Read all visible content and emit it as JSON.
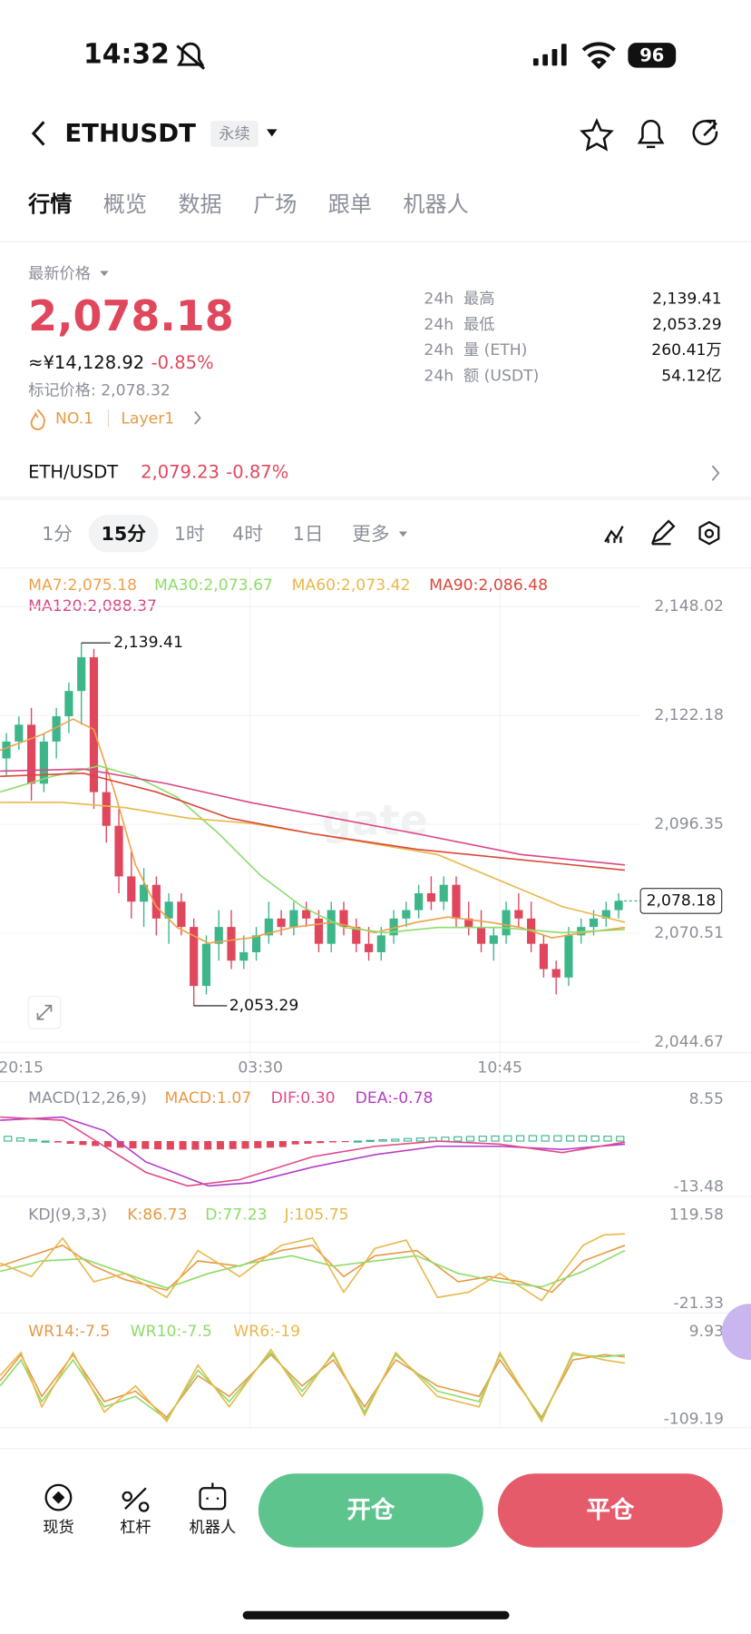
{
  "status_bar": {
    "time": "14:32",
    "battery": "96"
  },
  "header": {
    "symbol": "ETHUSDT",
    "badge": "永续"
  },
  "tabs": [
    "行情",
    "概览",
    "数据",
    "广场",
    "跟单",
    "机器人"
  ],
  "price": {
    "label": "最新价格",
    "last": "2,078.18",
    "cny": "≈¥14,128.92",
    "change": "-0.85%",
    "mark": "标记价格: 2,078.32",
    "tags": [
      "NO.1",
      "Layer1"
    ]
  },
  "stats": [
    {
      "period": "24h",
      "label": "最高",
      "value": "2,139.41"
    },
    {
      "period": "24h",
      "label": "最低",
      "value": "2,053.29"
    },
    {
      "period": "24h",
      "label": "量 (ETH)",
      "value": "260.41万"
    },
    {
      "period": "24h",
      "label": "额 (USDT)",
      "value": "54.12亿"
    }
  ],
  "pair": {
    "name": "ETH/USDT",
    "price": "2,079.23",
    "change": "-0.87%"
  },
  "timeframes": [
    "1分",
    "15分",
    "1时",
    "4时",
    "1日",
    "更多"
  ],
  "kline": {
    "type": "candlestick",
    "ma_labels": [
      "MA7:2,075.18",
      "MA30:2,073.67",
      "MA60:2,073.42",
      "MA90:2,086.48",
      "MA120:2,088.37"
    ],
    "ylim": [
      2042.2,
      2157.2
    ],
    "yticks": [
      {
        "value": 2148.02,
        "label": "2,148.02"
      },
      {
        "value": 2122.18,
        "label": "2,122.18"
      },
      {
        "value": 2096.35,
        "label": "2,096.35"
      },
      {
        "value": 2070.51,
        "label": "2,070.51"
      },
      {
        "value": 2044.67,
        "label": "2,044.67"
      }
    ],
    "times": [
      "20:15",
      "03:30",
      "10:45"
    ],
    "high": {
      "value": 2139.41,
      "label": "2,139.41"
    },
    "low": {
      "value": 2053.29,
      "label": "2,053.29"
    },
    "current": {
      "value": 2078.18,
      "label": "2,078.18"
    },
    "candles": [
      [
        2112,
        2118,
        2108,
        2116
      ],
      [
        2116,
        2122,
        2114,
        2120
      ],
      [
        2120,
        2124,
        2102,
        2106
      ],
      [
        2106,
        2118,
        2104,
        2116
      ],
      [
        2116,
        2124,
        2112,
        2122
      ],
      [
        2122,
        2130,
        2118,
        2128
      ],
      [
        2128,
        2139.41,
        2120,
        2136
      ],
      [
        2136,
        2138,
        2100,
        2104
      ],
      [
        2104,
        2110,
        2092,
        2096
      ],
      [
        2096,
        2100,
        2080,
        2084
      ],
      [
        2084,
        2090,
        2074,
        2078
      ],
      [
        2078,
        2086,
        2072,
        2082
      ],
      [
        2082,
        2084,
        2070,
        2074
      ],
      [
        2074,
        2080,
        2068,
        2078
      ],
      [
        2078,
        2080,
        2070,
        2072
      ],
      [
        2072,
        2074,
        2053.29,
        2058
      ],
      [
        2058,
        2070,
        2056,
        2068
      ],
      [
        2068,
        2076,
        2064,
        2072
      ],
      [
        2072,
        2076,
        2062,
        2064
      ],
      [
        2064,
        2070,
        2062,
        2066
      ],
      [
        2066,
        2072,
        2064,
        2070
      ],
      [
        2070,
        2078,
        2068,
        2074
      ],
      [
        2074,
        2076,
        2070,
        2072
      ],
      [
        2072,
        2078,
        2070,
        2076
      ],
      [
        2076,
        2078,
        2072,
        2074
      ],
      [
        2074,
        2076,
        2066,
        2068
      ],
      [
        2068,
        2078,
        2066,
        2076
      ],
      [
        2076,
        2078,
        2070,
        2072
      ],
      [
        2072,
        2074,
        2066,
        2068
      ],
      [
        2068,
        2072,
        2064,
        2066
      ],
      [
        2066,
        2072,
        2064,
        2070
      ],
      [
        2070,
        2076,
        2068,
        2074
      ],
      [
        2074,
        2078,
        2072,
        2076
      ],
      [
        2076,
        2082,
        2074,
        2080
      ],
      [
        2080,
        2084,
        2076,
        2078
      ],
      [
        2078,
        2084,
        2076,
        2082
      ],
      [
        2082,
        2084,
        2072,
        2074
      ],
      [
        2074,
        2078,
        2070,
        2072
      ],
      [
        2072,
        2076,
        2066,
        2068
      ],
      [
        2068,
        2072,
        2064,
        2070
      ],
      [
        2070,
        2078,
        2068,
        2076
      ],
      [
        2076,
        2080,
        2072,
        2074
      ],
      [
        2074,
        2078,
        2066,
        2068
      ],
      [
        2068,
        2070,
        2060,
        2062
      ],
      [
        2062,
        2064,
        2056,
        2060
      ],
      [
        2060,
        2072,
        2058,
        2070
      ],
      [
        2070,
        2074,
        2068,
        2072
      ],
      [
        2072,
        2076,
        2070,
        2074
      ],
      [
        2074,
        2078,
        2072,
        2076
      ],
      [
        2076,
        2080,
        2074,
        2078.18
      ]
    ]
  },
  "macd": {
    "title": "MACD(12,26,9)",
    "items": [
      "MACD:1.07",
      "DIF:0.30",
      "DEA:-0.78"
    ],
    "ticks": [
      8.55,
      -13.48
    ]
  },
  "kdj": {
    "title": "KDJ(9,3,3)",
    "items": [
      "K:86.73",
      "D:77.23",
      "J:105.75"
    ],
    "ticks": [
      119.58,
      -21.33
    ]
  },
  "wr": {
    "items": [
      "WR14:-7.5",
      "WR10:-7.5",
      "WR6:-19"
    ],
    "ticks": [
      9.93,
      -109.19
    ]
  },
  "bottom_nav": {
    "items": [
      "现货",
      "杠杆",
      "机器人"
    ],
    "open": "开仓",
    "close": "平仓"
  }
}
